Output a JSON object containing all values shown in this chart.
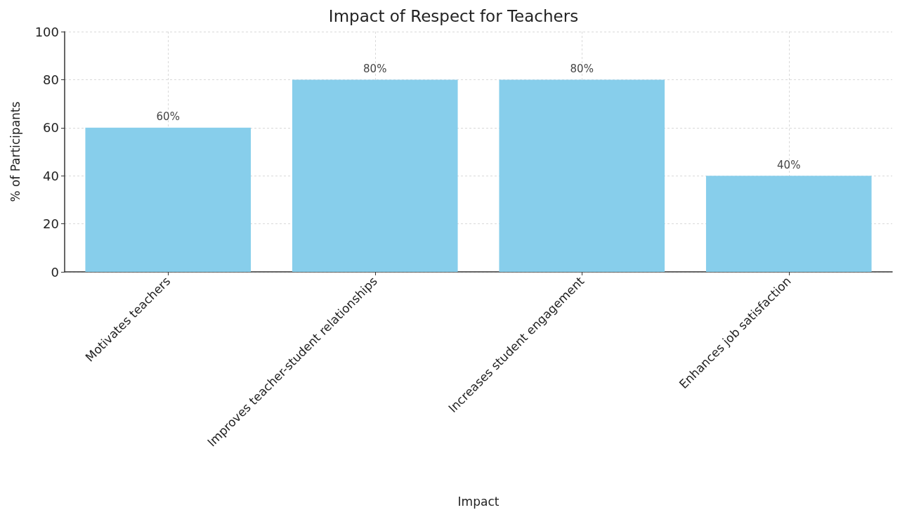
{
  "chart_data": {
    "type": "bar",
    "title": "Impact of Respect for Teachers",
    "xlabel": "Impact",
    "ylabel": "% of Participants",
    "categories": [
      "Motivates teachers",
      "Improves teacher-student relationships",
      "Increases student engagement",
      "Enhances job satisfaction"
    ],
    "values": [
      60,
      80,
      80,
      40
    ],
    "value_labels": [
      "60%",
      "80%",
      "80%",
      "40%"
    ],
    "color": "#87ceeb",
    "ylim": [
      0,
      100
    ],
    "yticks": [
      0,
      20,
      40,
      60,
      80,
      100
    ],
    "grid": true
  }
}
